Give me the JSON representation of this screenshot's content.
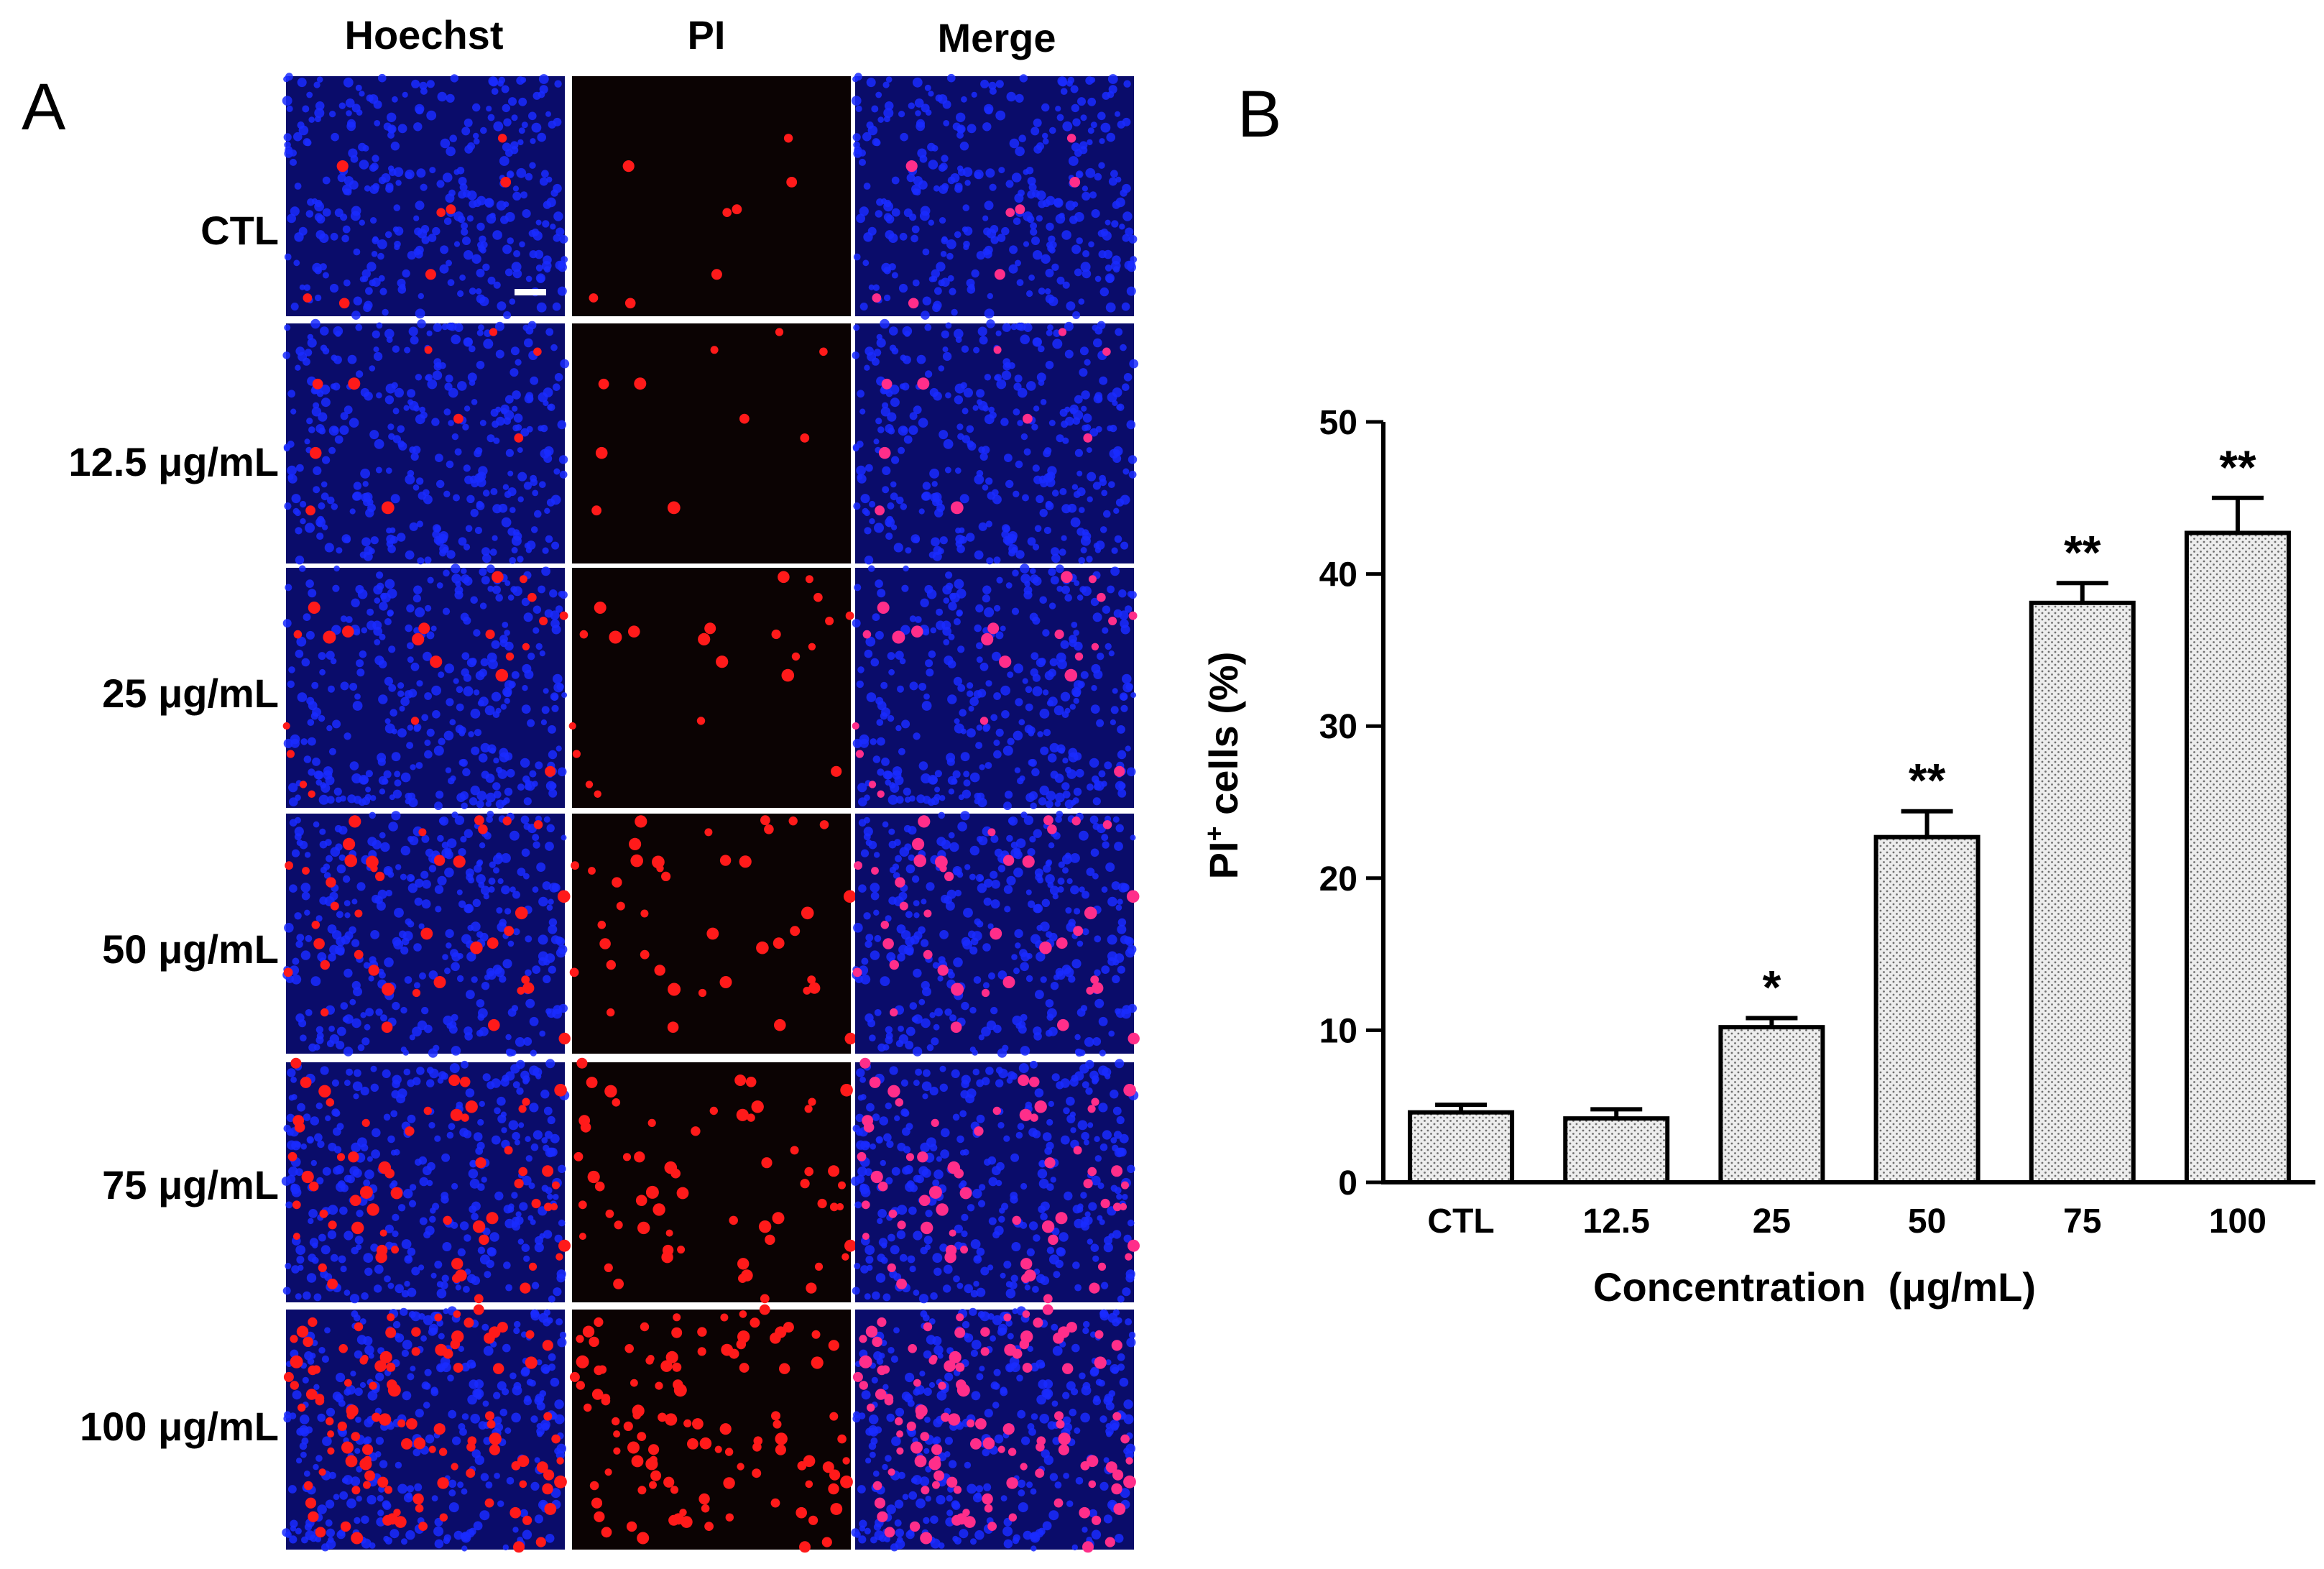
{
  "panel_a": {
    "letter": "A",
    "columns": [
      "Hoechst",
      "PI",
      "Merge"
    ],
    "rows": [
      "CTL",
      "12.5 μg/mL",
      "25 μg/mL",
      "50 μg/mL",
      "75 μg/mL",
      "100 μg/mL"
    ],
    "pi_cells_per_row": [
      8,
      10,
      22,
      40,
      60,
      110
    ],
    "colors": {
      "nuclei": "#1a2cff",
      "background_blue": "#0a0c6a",
      "pi": "#ff1a1a",
      "pi_background": "#0b0303",
      "merge_pi": "#ff2e8a",
      "scale_bar": "#ffffff"
    }
  },
  "panel_b": {
    "letter": "B"
  },
  "chart_data": {
    "type": "bar",
    "categories": [
      "CTL",
      "12.5",
      "25",
      "50",
      "75",
      "100"
    ],
    "values": [
      4.6,
      4.2,
      10.2,
      22.7,
      38.1,
      42.7
    ],
    "errors": [
      0.5,
      0.6,
      0.6,
      1.7,
      1.3,
      2.3
    ],
    "significance": [
      "",
      "",
      "*",
      "**",
      "**",
      "**"
    ],
    "xlabel": "Concentration  (μg/mL)",
    "ylabel_main": "PI",
    "ylabel_sup": "+",
    "ylabel_rest": " cells (%)",
    "ylim": [
      0,
      50
    ],
    "yticks": [
      "0",
      "10",
      "20",
      "30",
      "40",
      "50"
    ],
    "grid": false,
    "bar_fill": "dotted",
    "colors": {
      "bar_fill": "#ededed",
      "bar_dots": "#6e6e6e",
      "stroke": "#000000"
    }
  }
}
